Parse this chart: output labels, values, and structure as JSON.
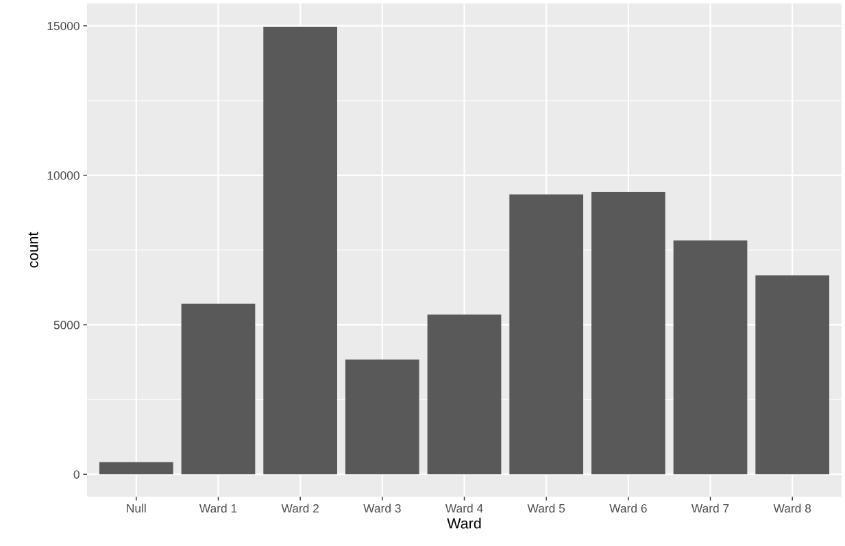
{
  "chart_data": {
    "type": "bar",
    "xlabel": "Ward",
    "ylabel": "count",
    "categories": [
      "Null",
      "Ward 1",
      "Ward 2",
      "Ward 3",
      "Ward 4",
      "Ward 5",
      "Ward 6",
      "Ward 7",
      "Ward 8"
    ],
    "values": [
      410,
      5700,
      14970,
      3840,
      5340,
      9360,
      9450,
      7820,
      6650
    ],
    "color": "#595959",
    "ylim": [
      -750,
      15750
    ],
    "yticks": [
      0,
      5000,
      10000,
      15000
    ],
    "grid": true
  }
}
